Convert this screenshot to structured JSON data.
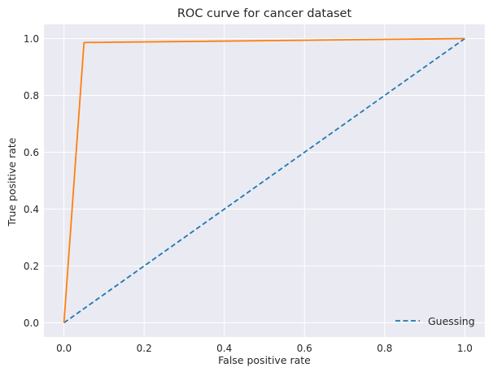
{
  "chart_data": {
    "type": "line",
    "title": "ROC curve for cancer dataset",
    "xlabel": "False positive rate",
    "ylabel": "True positive rate",
    "xlim": [
      -0.05,
      1.05
    ],
    "ylim": [
      -0.05,
      1.05
    ],
    "xticks": [
      "0.0",
      "0.2",
      "0.4",
      "0.6",
      "0.8",
      "1.0"
    ],
    "yticks": [
      "0.0",
      "0.2",
      "0.4",
      "0.6",
      "0.8",
      "1.0"
    ],
    "grid": true,
    "legend_position": "lower-right",
    "series": [
      {
        "name": "Guessing",
        "style": "dashed",
        "color": "#1f77b4",
        "x": [
          0.0,
          1.0
        ],
        "y": [
          0.0,
          1.0
        ]
      },
      {
        "style": "solid",
        "color": "#ff7f0e",
        "x": [
          0.0,
          0.05,
          1.0
        ],
        "y": [
          0.0,
          0.986,
          1.0
        ]
      }
    ]
  },
  "colors": {
    "plot_background": "#eaeaf2",
    "grid": "#ffffff"
  }
}
